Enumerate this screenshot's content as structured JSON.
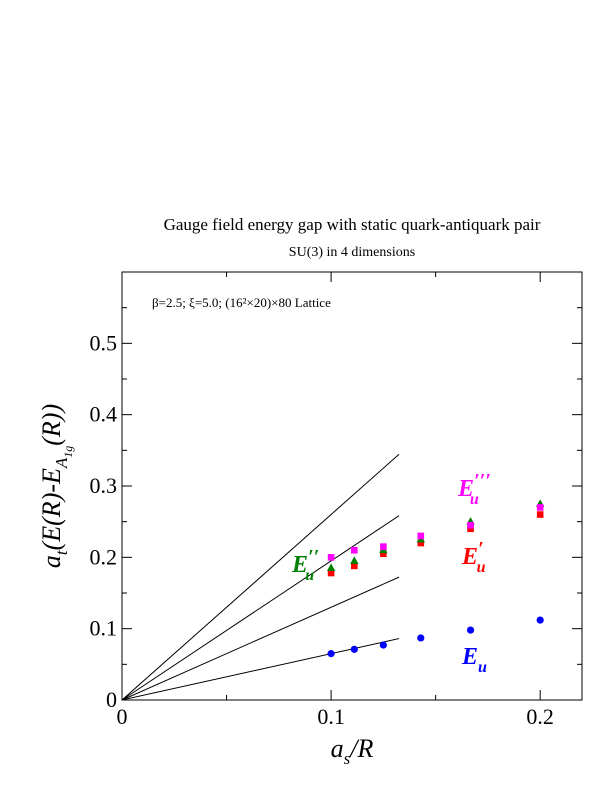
{
  "chart_data": {
    "type": "scatter",
    "title": "Gauge field energy gap with static quark-antiquark pair",
    "subtitle": "SU(3) in 4 dimensions",
    "annotation": "β=2.5;  ξ=5.0;  (16²×20)×80 Lattice",
    "xlabel": {
      "main": "a",
      "sub": "s",
      "rest": "/R"
    },
    "ylabel": {
      "a": "a",
      "a_sub": "t",
      "mid": "(E(R)-E",
      "E_sub": "A",
      "E_subsub": "1g",
      "end": "(R))"
    },
    "xlim": [
      0,
      0.22
    ],
    "ylim": [
      0,
      0.6
    ],
    "x_ticks": [
      0,
      0.1,
      0.2
    ],
    "x_tick_labels": [
      "0",
      "0.1",
      "0.2"
    ],
    "y_ticks": [
      0,
      0.1,
      0.2,
      0.3,
      0.4,
      0.5
    ],
    "y_tick_labels": [
      "0",
      "0.1",
      "0.2",
      "0.3",
      "0.4",
      "0.5"
    ],
    "grid": false,
    "legend": false,
    "reference_lines": {
      "x_end": 0.1325,
      "slopes": [
        2.6,
        1.95,
        1.3,
        0.65
      ]
    },
    "series": [
      {
        "name": "E_u",
        "label": {
          "base": "E",
          "sub": "u",
          "primes": ""
        },
        "color": "#0000ff",
        "marker": "circle",
        "x": [
          0.1,
          0.1111,
          0.125,
          0.1429,
          0.1667,
          0.2
        ],
        "y": [
          0.065,
          0.071,
          0.077,
          0.087,
          0.098,
          0.112
        ]
      },
      {
        "name": "E'_u",
        "label": {
          "base": "E",
          "sub": "u",
          "primes": "′"
        },
        "color": "#ff0000",
        "marker": "square",
        "x": [
          0.1,
          0.1111,
          0.125,
          0.1429,
          0.1667,
          0.2
        ],
        "y": [
          0.178,
          0.188,
          0.205,
          0.22,
          0.24,
          0.26
        ]
      },
      {
        "name": "E''_u",
        "label": {
          "base": "E",
          "sub": "u",
          "primes": "′′"
        },
        "color": "#008000",
        "marker": "triangle",
        "x": [
          0.1,
          0.1111,
          0.125,
          0.1429,
          0.1667,
          0.2
        ],
        "y": [
          0.185,
          0.195,
          0.21,
          0.225,
          0.25,
          0.275
        ]
      },
      {
        "name": "E'''_u",
        "label": {
          "base": "E",
          "sub": "u",
          "primes": "′′′"
        },
        "color": "#ff00ff",
        "marker": "square",
        "x": [
          0.1,
          0.1111,
          0.125,
          0.1429,
          0.1667,
          0.2
        ],
        "y": [
          0.2,
          0.21,
          0.215,
          0.23,
          0.245,
          0.27
        ]
      }
    ]
  }
}
